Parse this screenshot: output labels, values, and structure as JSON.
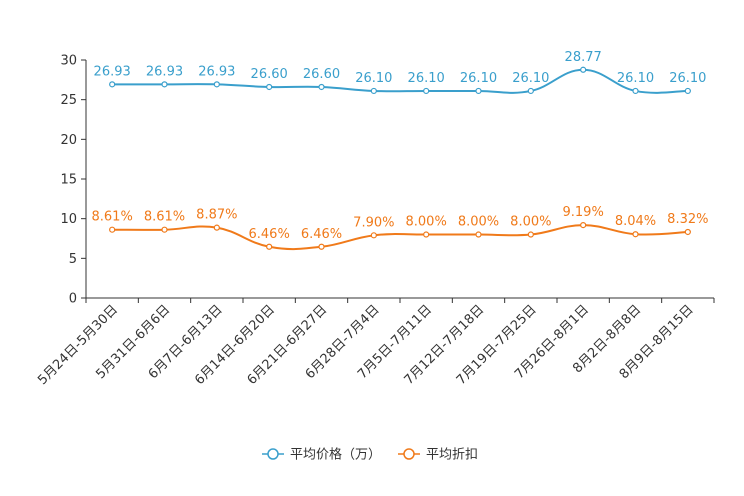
{
  "chart_data": {
    "type": "line",
    "categories": [
      "5月24日-5月30日",
      "5月31日-6月6日",
      "6月7日-6月13日",
      "6月14日-6月20日",
      "6月21日-6月27日",
      "6月28日-7月4日",
      "7月5日-7月11日",
      "7月12日-7月18日",
      "7月19日-7月25日",
      "7月26日-8月1日",
      "8月2日-8月8日",
      "8月9日-8月15日"
    ],
    "ylim": [
      0,
      30
    ],
    "yticks": [
      0,
      5,
      10,
      15,
      20,
      25,
      30
    ],
    "ytick_labels": [
      "0",
      "5",
      "10",
      "15",
      "20",
      "25",
      "30"
    ],
    "series": [
      {
        "name": "平均价格（万）",
        "color": "#3a9fcc",
        "values": [
          26.93,
          26.93,
          26.93,
          26.6,
          26.6,
          26.1,
          26.1,
          26.1,
          26.1,
          28.77,
          26.1,
          26.1
        ],
        "labels": [
          "26.93",
          "26.93",
          "26.93",
          "26.60",
          "26.60",
          "26.10",
          "26.10",
          "26.10",
          "26.10",
          "28.77",
          "26.10",
          "26.10"
        ]
      },
      {
        "name": "平均折扣",
        "color": "#f07a1a",
        "values": [
          8.61,
          8.61,
          8.87,
          6.46,
          6.46,
          7.9,
          8.0,
          8.0,
          8.0,
          9.19,
          8.04,
          8.32
        ],
        "labels": [
          "8.61%",
          "8.61%",
          "8.87%",
          "6.46%",
          "6.46%",
          "7.90%",
          "8.00%",
          "8.00%",
          "8.00%",
          "9.19%",
          "8.04%",
          "8.32%"
        ]
      }
    ],
    "legend_position": "bottom-center"
  }
}
